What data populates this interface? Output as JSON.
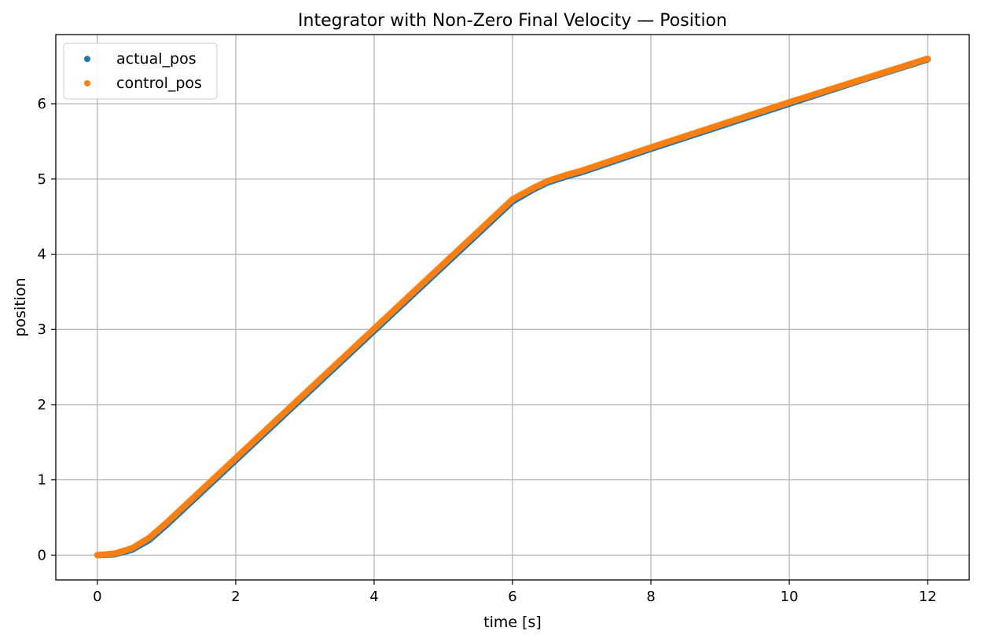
{
  "chart_data": {
    "type": "scatter",
    "title": "Integrator with Non-Zero Final Velocity — Position",
    "xlabel": "time [s]",
    "ylabel": "position",
    "xlim": [
      -0.6,
      12.6
    ],
    "ylim": [
      -0.33,
      6.92
    ],
    "xticks": [
      0,
      2,
      4,
      6,
      8,
      10,
      12
    ],
    "yticks": [
      0,
      1,
      2,
      3,
      4,
      5,
      6
    ],
    "xtick_labels": [
      "0",
      "2",
      "4",
      "6",
      "8",
      "10",
      "12"
    ],
    "ytick_labels": [
      "0",
      "1",
      "2",
      "3",
      "4",
      "5",
      "6"
    ],
    "grid": true,
    "legend_position": "top-left",
    "series": [
      {
        "name": "actual_pos",
        "color": "#1f77b4",
        "points": [
          [
            0.0,
            0.0
          ],
          [
            0.25,
            0.01
          ],
          [
            0.5,
            0.07
          ],
          [
            0.75,
            0.2
          ],
          [
            1.0,
            0.4
          ],
          [
            1.5,
            0.83
          ],
          [
            2.0,
            1.26
          ],
          [
            2.5,
            1.69
          ],
          [
            3.0,
            2.12
          ],
          [
            3.5,
            2.55
          ],
          [
            4.0,
            2.98
          ],
          [
            4.5,
            3.41
          ],
          [
            5.0,
            3.84
          ],
          [
            5.5,
            4.27
          ],
          [
            6.0,
            4.7
          ],
          [
            6.3,
            4.86
          ],
          [
            6.5,
            4.95
          ],
          [
            6.8,
            5.04
          ],
          [
            7.0,
            5.09
          ],
          [
            8.0,
            5.4
          ],
          [
            9.0,
            5.7
          ],
          [
            10.0,
            6.0
          ],
          [
            11.0,
            6.3
          ],
          [
            12.0,
            6.59
          ]
        ]
      },
      {
        "name": "control_pos",
        "color": "#ff7f0e",
        "points": [
          [
            0.0,
            0.0
          ],
          [
            0.25,
            0.02
          ],
          [
            0.5,
            0.09
          ],
          [
            0.75,
            0.23
          ],
          [
            1.0,
            0.43
          ],
          [
            1.5,
            0.86
          ],
          [
            2.0,
            1.29
          ],
          [
            2.5,
            1.72
          ],
          [
            3.0,
            2.15
          ],
          [
            3.5,
            2.58
          ],
          [
            4.0,
            3.01
          ],
          [
            4.5,
            3.44
          ],
          [
            5.0,
            3.87
          ],
          [
            5.5,
            4.3
          ],
          [
            6.0,
            4.73
          ],
          [
            6.3,
            4.88
          ],
          [
            6.5,
            4.97
          ],
          [
            6.8,
            5.06
          ],
          [
            7.0,
            5.11
          ],
          [
            8.0,
            5.42
          ],
          [
            9.0,
            5.72
          ],
          [
            10.0,
            6.02
          ],
          [
            11.0,
            6.31
          ],
          [
            12.0,
            6.6
          ]
        ]
      }
    ]
  }
}
